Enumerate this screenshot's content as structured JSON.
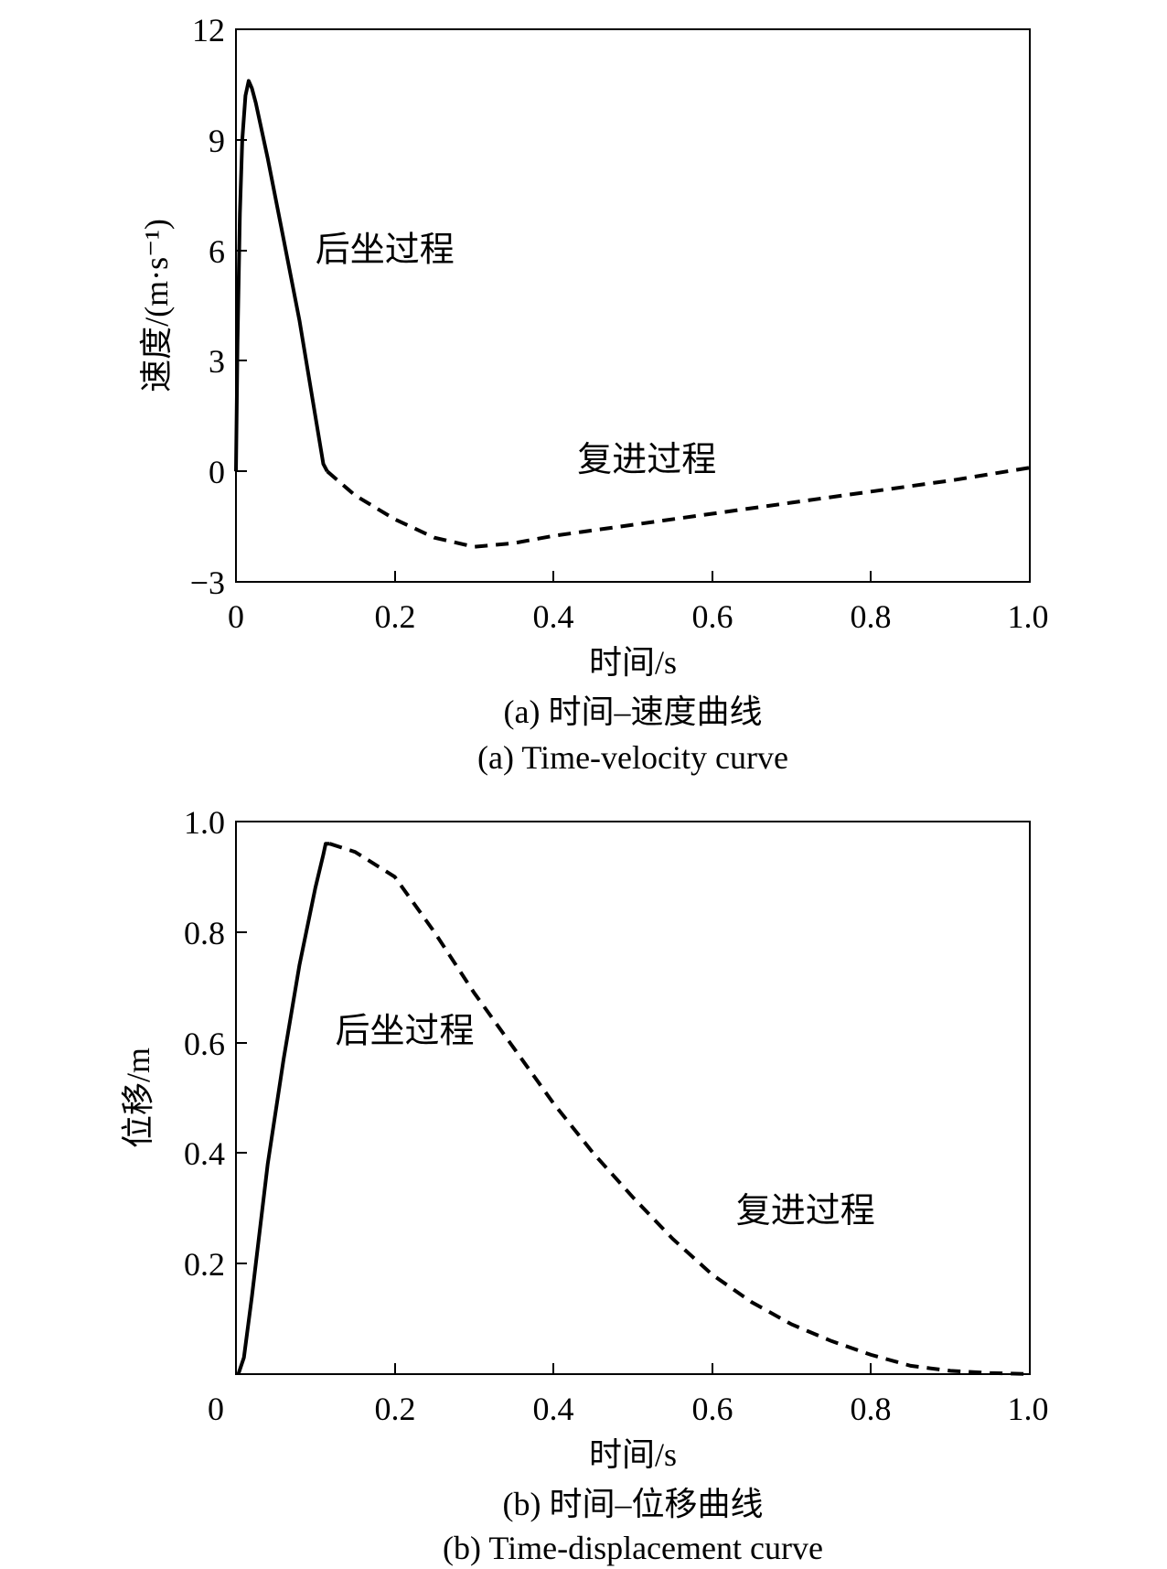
{
  "chart_data": [
    {
      "type": "line",
      "title": "",
      "xlabel": "时间/s",
      "ylabel": "速度/(m·s⁻¹)",
      "xlim": [
        0,
        1.0
      ],
      "ylim": [
        -3,
        12
      ],
      "x_ticks": [
        "0",
        "0.2",
        "0.4",
        "0.6",
        "0.8",
        "1.0"
      ],
      "y_ticks": [
        "12",
        "9",
        "6",
        "3",
        "0",
        "−3"
      ],
      "grid": false,
      "annotations": [
        {
          "text": "后坐过程",
          "x": 0.1,
          "y": 5.7
        },
        {
          "text": "复进过程",
          "x": 0.43,
          "y": 0.0
        }
      ],
      "series": [
        {
          "style": "solid",
          "x": [
            0,
            0.002,
            0.005,
            0.008,
            0.012,
            0.016,
            0.02,
            0.025,
            0.04,
            0.06,
            0.08,
            0.1,
            0.11,
            0.115
          ],
          "y": [
            0,
            3.5,
            7.0,
            9.0,
            10.2,
            10.6,
            10.4,
            10.0,
            8.5,
            6.3,
            4.1,
            1.5,
            0.2,
            0.0
          ]
        },
        {
          "style": "dashed",
          "x": [
            0.115,
            0.15,
            0.2,
            0.25,
            0.3,
            0.35,
            0.4,
            0.5,
            0.6,
            0.7,
            0.8,
            0.9,
            1.0
          ],
          "y": [
            0.0,
            -0.65,
            -1.3,
            -1.8,
            -2.05,
            -1.95,
            -1.75,
            -1.45,
            -1.15,
            -0.85,
            -0.55,
            -0.25,
            0.1
          ]
        }
      ],
      "caption_cn": "(a) 时间–速度曲线",
      "caption_en": "(a) Time-velocity curve"
    },
    {
      "type": "line",
      "title": "",
      "xlabel": "时间/s",
      "ylabel": "位移/m",
      "xlim": [
        0,
        1.0
      ],
      "ylim": [
        0,
        1.0
      ],
      "x_ticks": [
        "0",
        "0.2",
        "0.4",
        "0.6",
        "0.8",
        "1.0"
      ],
      "y_ticks": [
        "1.0",
        "0.8",
        "0.6",
        "0.4",
        "0.2"
      ],
      "grid": false,
      "annotations": [
        {
          "text": "后坐过程",
          "x": 0.125,
          "y": 0.6
        },
        {
          "text": "复进过程",
          "x": 0.63,
          "y": 0.275
        }
      ],
      "series": [
        {
          "style": "solid",
          "x": [
            0.003,
            0.01,
            0.02,
            0.04,
            0.06,
            0.08,
            0.1,
            0.11,
            0.113,
            0.118
          ],
          "y": [
            0.0,
            0.03,
            0.14,
            0.38,
            0.57,
            0.74,
            0.88,
            0.94,
            0.96,
            0.96
          ]
        },
        {
          "style": "dashed",
          "x": [
            0.118,
            0.15,
            0.2,
            0.25,
            0.3,
            0.35,
            0.4,
            0.45,
            0.5,
            0.55,
            0.6,
            0.65,
            0.7,
            0.75,
            0.8,
            0.85,
            0.9,
            0.95,
            1.0
          ],
          "y": [
            0.96,
            0.945,
            0.9,
            0.8,
            0.69,
            0.59,
            0.49,
            0.4,
            0.32,
            0.245,
            0.18,
            0.13,
            0.09,
            0.06,
            0.035,
            0.015,
            0.006,
            0.002,
            0.0
          ]
        }
      ],
      "caption_cn": "(b) 时间–位移曲线",
      "caption_en": "(b) Time-displacement curve"
    }
  ]
}
